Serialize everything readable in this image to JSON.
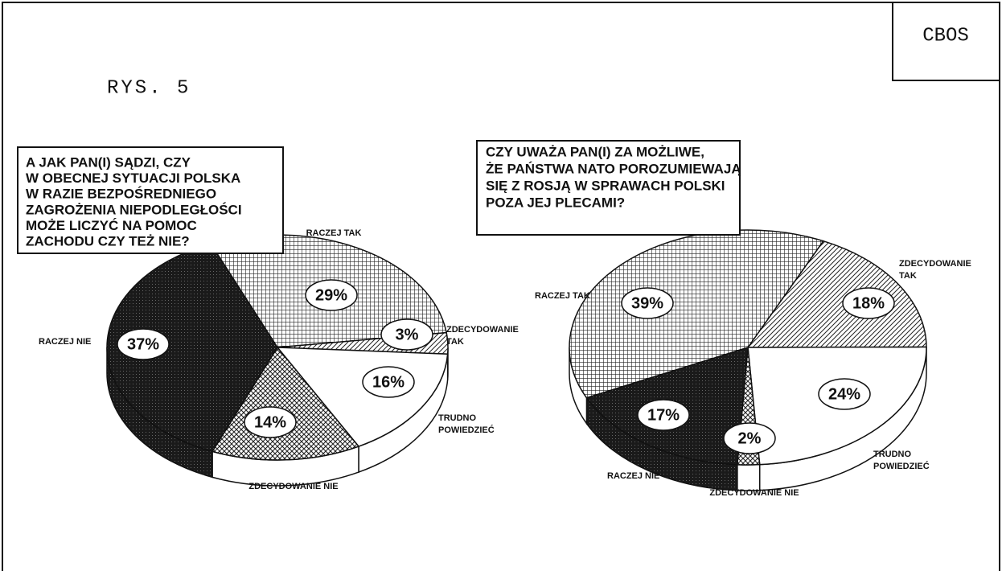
{
  "header": {
    "badge": "CBOS",
    "figure": "RYS. 5"
  },
  "chart_data": [
    {
      "type": "pie",
      "title": [
        "A JAK PAN(I) SĄDZI, CZY",
        "W OBECNEJ SYTUACJI POLSKA",
        "W RAZIE BEZPOŚREDNIEGO",
        "ZAGROŻENIA NIEPODLEGŁOŚCI",
        "MOŻE LICZYĆ NA POMOC",
        "ZACHODU CZY TEŻ NIE?"
      ],
      "categories": [
        "RACZEJ TAK",
        "ZDECYDOWANIE TAK",
        "TRUDNO POWIEDZIEĆ",
        "ZDECYDOWANIE NIE",
        "RACZEJ NIE"
      ],
      "values": [
        29,
        3,
        16,
        14,
        37
      ],
      "value_labels": [
        "29%",
        "3%",
        "16%",
        "14%",
        "37%"
      ],
      "patterns": [
        "grid",
        "hatch",
        "white",
        "cross",
        "dark"
      ]
    },
    {
      "type": "pie",
      "title": [
        "CZY UWAŻA PAN(I) ZA MOŻLIWE,",
        "ŻE PAŃSTWA NATO POROZUMIEWAJĄ",
        "SIĘ Z ROSJĄ W SPRAWACH POLSKI",
        "POZA JEJ PLECAMI?"
      ],
      "categories": [
        "ZDECYDOWANIE TAK",
        "TRUDNO POWIEDZIEĆ",
        "ZDECYDOWANIE NIE",
        "RACZEJ NIE",
        "RACZEJ TAK"
      ],
      "values": [
        18,
        24,
        2,
        17,
        39
      ],
      "value_labels": [
        "18%",
        "24%",
        "2%",
        "17%",
        "39%"
      ],
      "patterns": [
        "hatch",
        "white",
        "cross",
        "dark",
        "grid"
      ]
    }
  ]
}
